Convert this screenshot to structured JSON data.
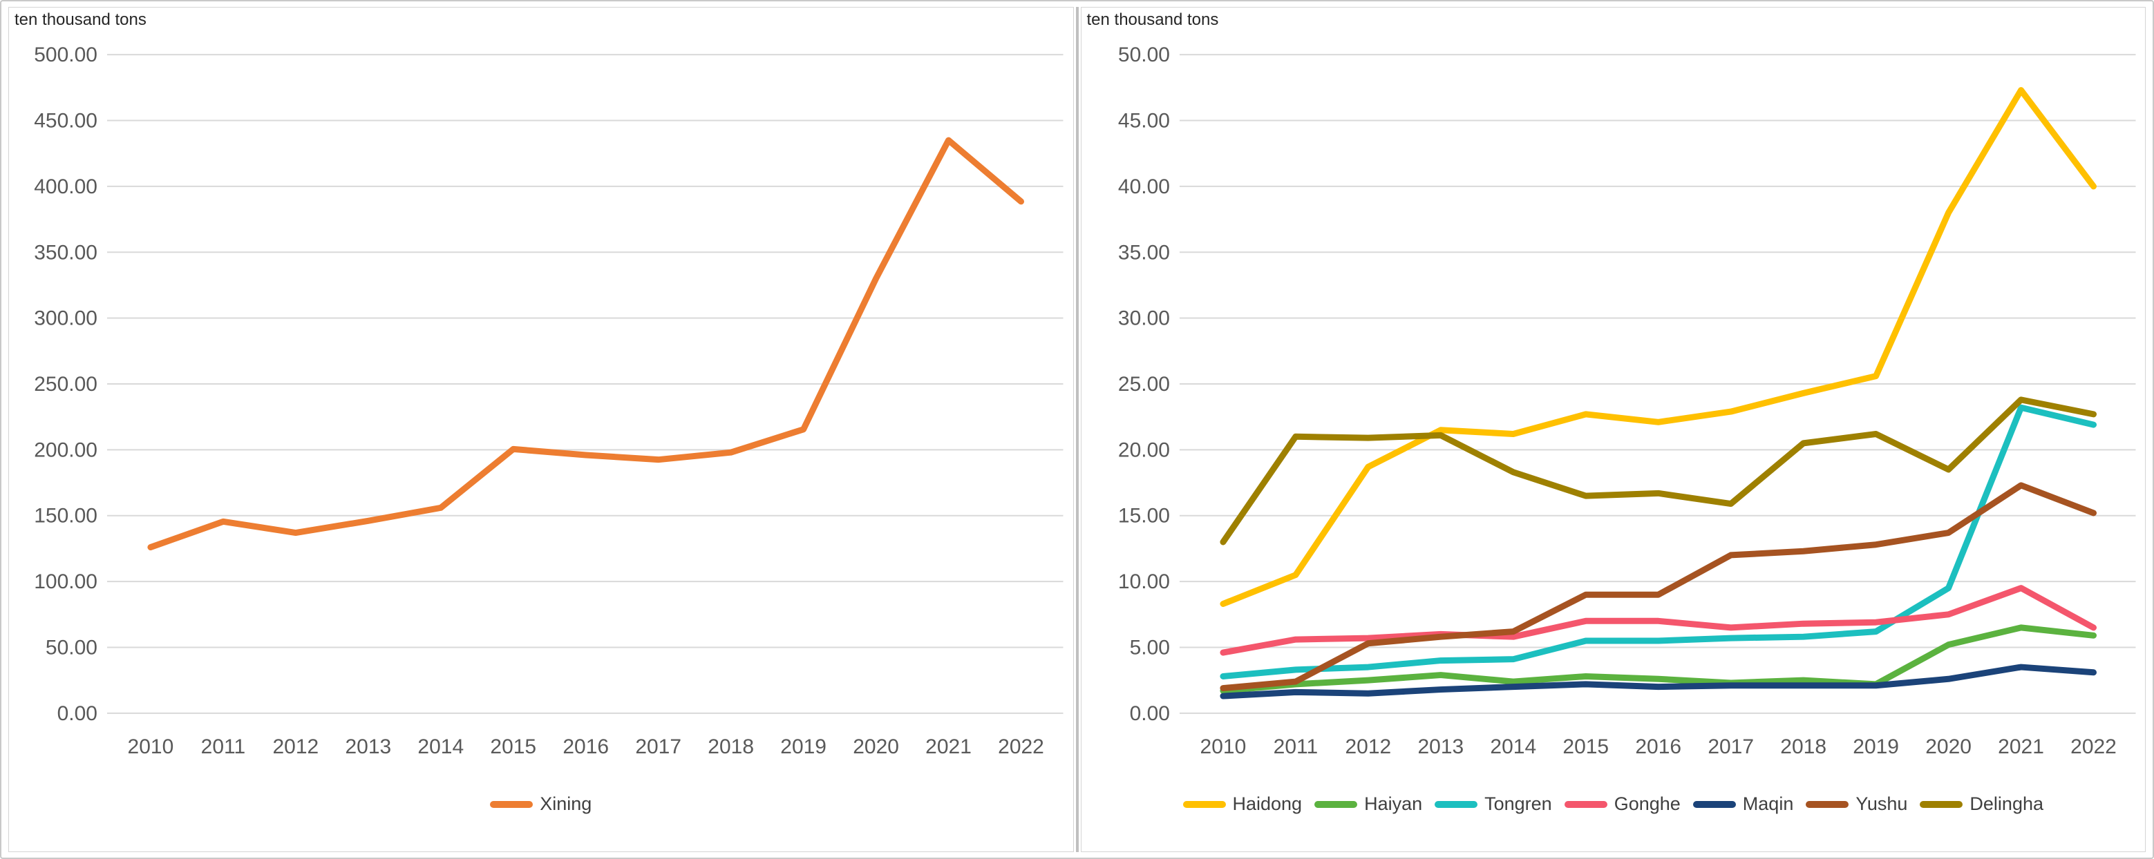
{
  "figure": {
    "unit_label_left": "ten thousand tons",
    "unit_label_right": "ten thousand tons",
    "grid_color": "#d9d9d9",
    "tick_color": "#595959"
  },
  "chart_data": [
    {
      "type": "line",
      "title": "",
      "ylabel": "ten thousand tons",
      "xlabel": "",
      "ylim": [
        0,
        500
      ],
      "ytick_step": 50,
      "y_tick_labels": [
        "500.00",
        "450.00",
        "400.00",
        "350.00",
        "300.00",
        "250.00",
        "200.00",
        "150.00",
        "100.00",
        "50.00",
        "0.00"
      ],
      "grid": true,
      "legend_position": "bottom",
      "x": [
        "2010",
        "2011",
        "2012",
        "2013",
        "2014",
        "2015",
        "2016",
        "2017",
        "2018",
        "2019",
        "2020",
        "2021",
        "2022"
      ],
      "series": [
        {
          "name": "Xining",
          "color": "#ED7D31",
          "values": [
            126,
            145.5,
            137,
            146,
            156,
            200.5,
            196,
            192.5,
            198,
            215.5,
            330,
            435,
            388.5
          ]
        }
      ]
    },
    {
      "type": "line",
      "title": "",
      "ylabel": "ten thousand tons",
      "xlabel": "",
      "ylim": [
        0,
        50
      ],
      "ytick_step": 5,
      "y_tick_labels": [
        "50.00",
        "45.00",
        "40.00",
        "35.00",
        "30.00",
        "25.00",
        "20.00",
        "15.00",
        "10.00",
        "5.00",
        "0.00"
      ],
      "grid": true,
      "legend_position": "bottom",
      "x": [
        "2010",
        "2011",
        "2012",
        "2013",
        "2014",
        "2015",
        "2016",
        "2017",
        "2018",
        "2019",
        "2020",
        "2021",
        "2022"
      ],
      "series": [
        {
          "name": "Haidong",
          "color": "#FFC000",
          "values": [
            8.3,
            10.5,
            18.7,
            21.5,
            21.2,
            22.7,
            22.1,
            22.9,
            24.3,
            25.6,
            38.0,
            47.3,
            40.0
          ]
        },
        {
          "name": "Haiyan",
          "color": "#5BB23F",
          "values": [
            1.7,
            2.2,
            2.5,
            2.9,
            2.4,
            2.8,
            2.6,
            2.3,
            2.5,
            2.2,
            5.2,
            6.5,
            5.9
          ]
        },
        {
          "name": "Tongren",
          "color": "#1CBFBF",
          "values": [
            2.8,
            3.3,
            3.5,
            4.0,
            4.1,
            5.5,
            5.5,
            5.7,
            5.8,
            6.2,
            9.5,
            23.2,
            21.9
          ]
        },
        {
          "name": "Gonghe",
          "color": "#F4566C",
          "values": [
            4.6,
            5.6,
            5.7,
            6.0,
            5.8,
            7.0,
            7.0,
            6.5,
            6.8,
            6.9,
            7.5,
            9.5,
            6.5
          ]
        },
        {
          "name": "Maqin",
          "color": "#1B4379",
          "values": [
            1.3,
            1.6,
            1.5,
            1.8,
            2.0,
            2.2,
            2.0,
            2.1,
            2.1,
            2.1,
            2.6,
            3.5,
            3.1
          ]
        },
        {
          "name": "Yushu",
          "color": "#A65321",
          "values": [
            1.9,
            2.4,
            5.3,
            5.8,
            6.2,
            9.0,
            9.0,
            12.0,
            12.3,
            12.8,
            13.7,
            17.3,
            15.2
          ]
        },
        {
          "name": "Delingha",
          "color": "#9E8000",
          "values": [
            13.0,
            21.0,
            20.9,
            21.1,
            18.3,
            16.5,
            16.7,
            15.9,
            20.5,
            21.2,
            18.5,
            23.8,
            22.7
          ]
        }
      ]
    }
  ]
}
